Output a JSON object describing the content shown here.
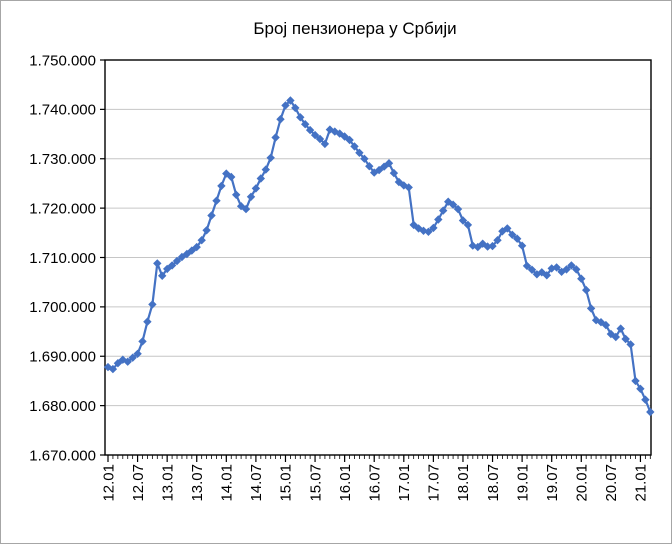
{
  "title": "Број пензионера у Србији",
  "chart_data": {
    "type": "line",
    "title": "Број пензионера у Србији",
    "xlabel": "",
    "ylabel": "",
    "x_start": "12.01",
    "x_frequency": "monthly",
    "x_tick_labels": [
      "12.01",
      "12.07",
      "13.01",
      "13.07",
      "14.01",
      "14.07",
      "15.01",
      "15.07",
      "16.01",
      "16.07",
      "17.01",
      "17.07",
      "18.01",
      "18.07",
      "19.01",
      "19.07",
      "20.01",
      "20.07",
      "21.01"
    ],
    "x_tick_every": 6,
    "ylim": [
      1670000,
      1750000
    ],
    "y_tick_step": 10000,
    "y_tick_labels": [
      "1.750.000",
      "1.740.000",
      "1.730.000",
      "1.720.000",
      "1.710.000",
      "1.700.000",
      "1.690.000",
      "1.680.000",
      "1.670.000"
    ],
    "grid": true,
    "legend": false,
    "line_color": "#4472C4",
    "gridline_color": "#c6c6c6",
    "axis_color": "#000000",
    "marker": "diamond",
    "series": [
      {
        "name": "Број пензионера",
        "values": [
          1687800,
          1687400,
          1688600,
          1689300,
          1688900,
          1689700,
          1690500,
          1693000,
          1697000,
          1700500,
          1708800,
          1706300,
          1707700,
          1708400,
          1709300,
          1710100,
          1710700,
          1711400,
          1712100,
          1713500,
          1715500,
          1718500,
          1721500,
          1724500,
          1727000,
          1726300,
          1722700,
          1720400,
          1719800,
          1722300,
          1724000,
          1726000,
          1727800,
          1730200,
          1734300,
          1738000,
          1740800,
          1741800,
          1740300,
          1738400,
          1737000,
          1735800,
          1734800,
          1734000,
          1733000,
          1735900,
          1735500,
          1735100,
          1734500,
          1733800,
          1732500,
          1731200,
          1730000,
          1728500,
          1727200,
          1727700,
          1728400,
          1729100,
          1727100,
          1725300,
          1724600,
          1724200,
          1716600,
          1715900,
          1715400,
          1715200,
          1716000,
          1717700,
          1719500,
          1721300,
          1720700,
          1719800,
          1717500,
          1716600,
          1712400,
          1712100,
          1712800,
          1712200,
          1712300,
          1713500,
          1715300,
          1715900,
          1714600,
          1713800,
          1712400,
          1708300,
          1707500,
          1706600,
          1707000,
          1706400,
          1707800,
          1708000,
          1707100,
          1707600,
          1708400,
          1707600,
          1705700,
          1703400,
          1699700,
          1697300,
          1696900,
          1696300,
          1694500,
          1693900,
          1695600,
          1693500,
          1692400,
          1685000,
          1683400,
          1681200,
          1678700
        ]
      }
    ]
  }
}
